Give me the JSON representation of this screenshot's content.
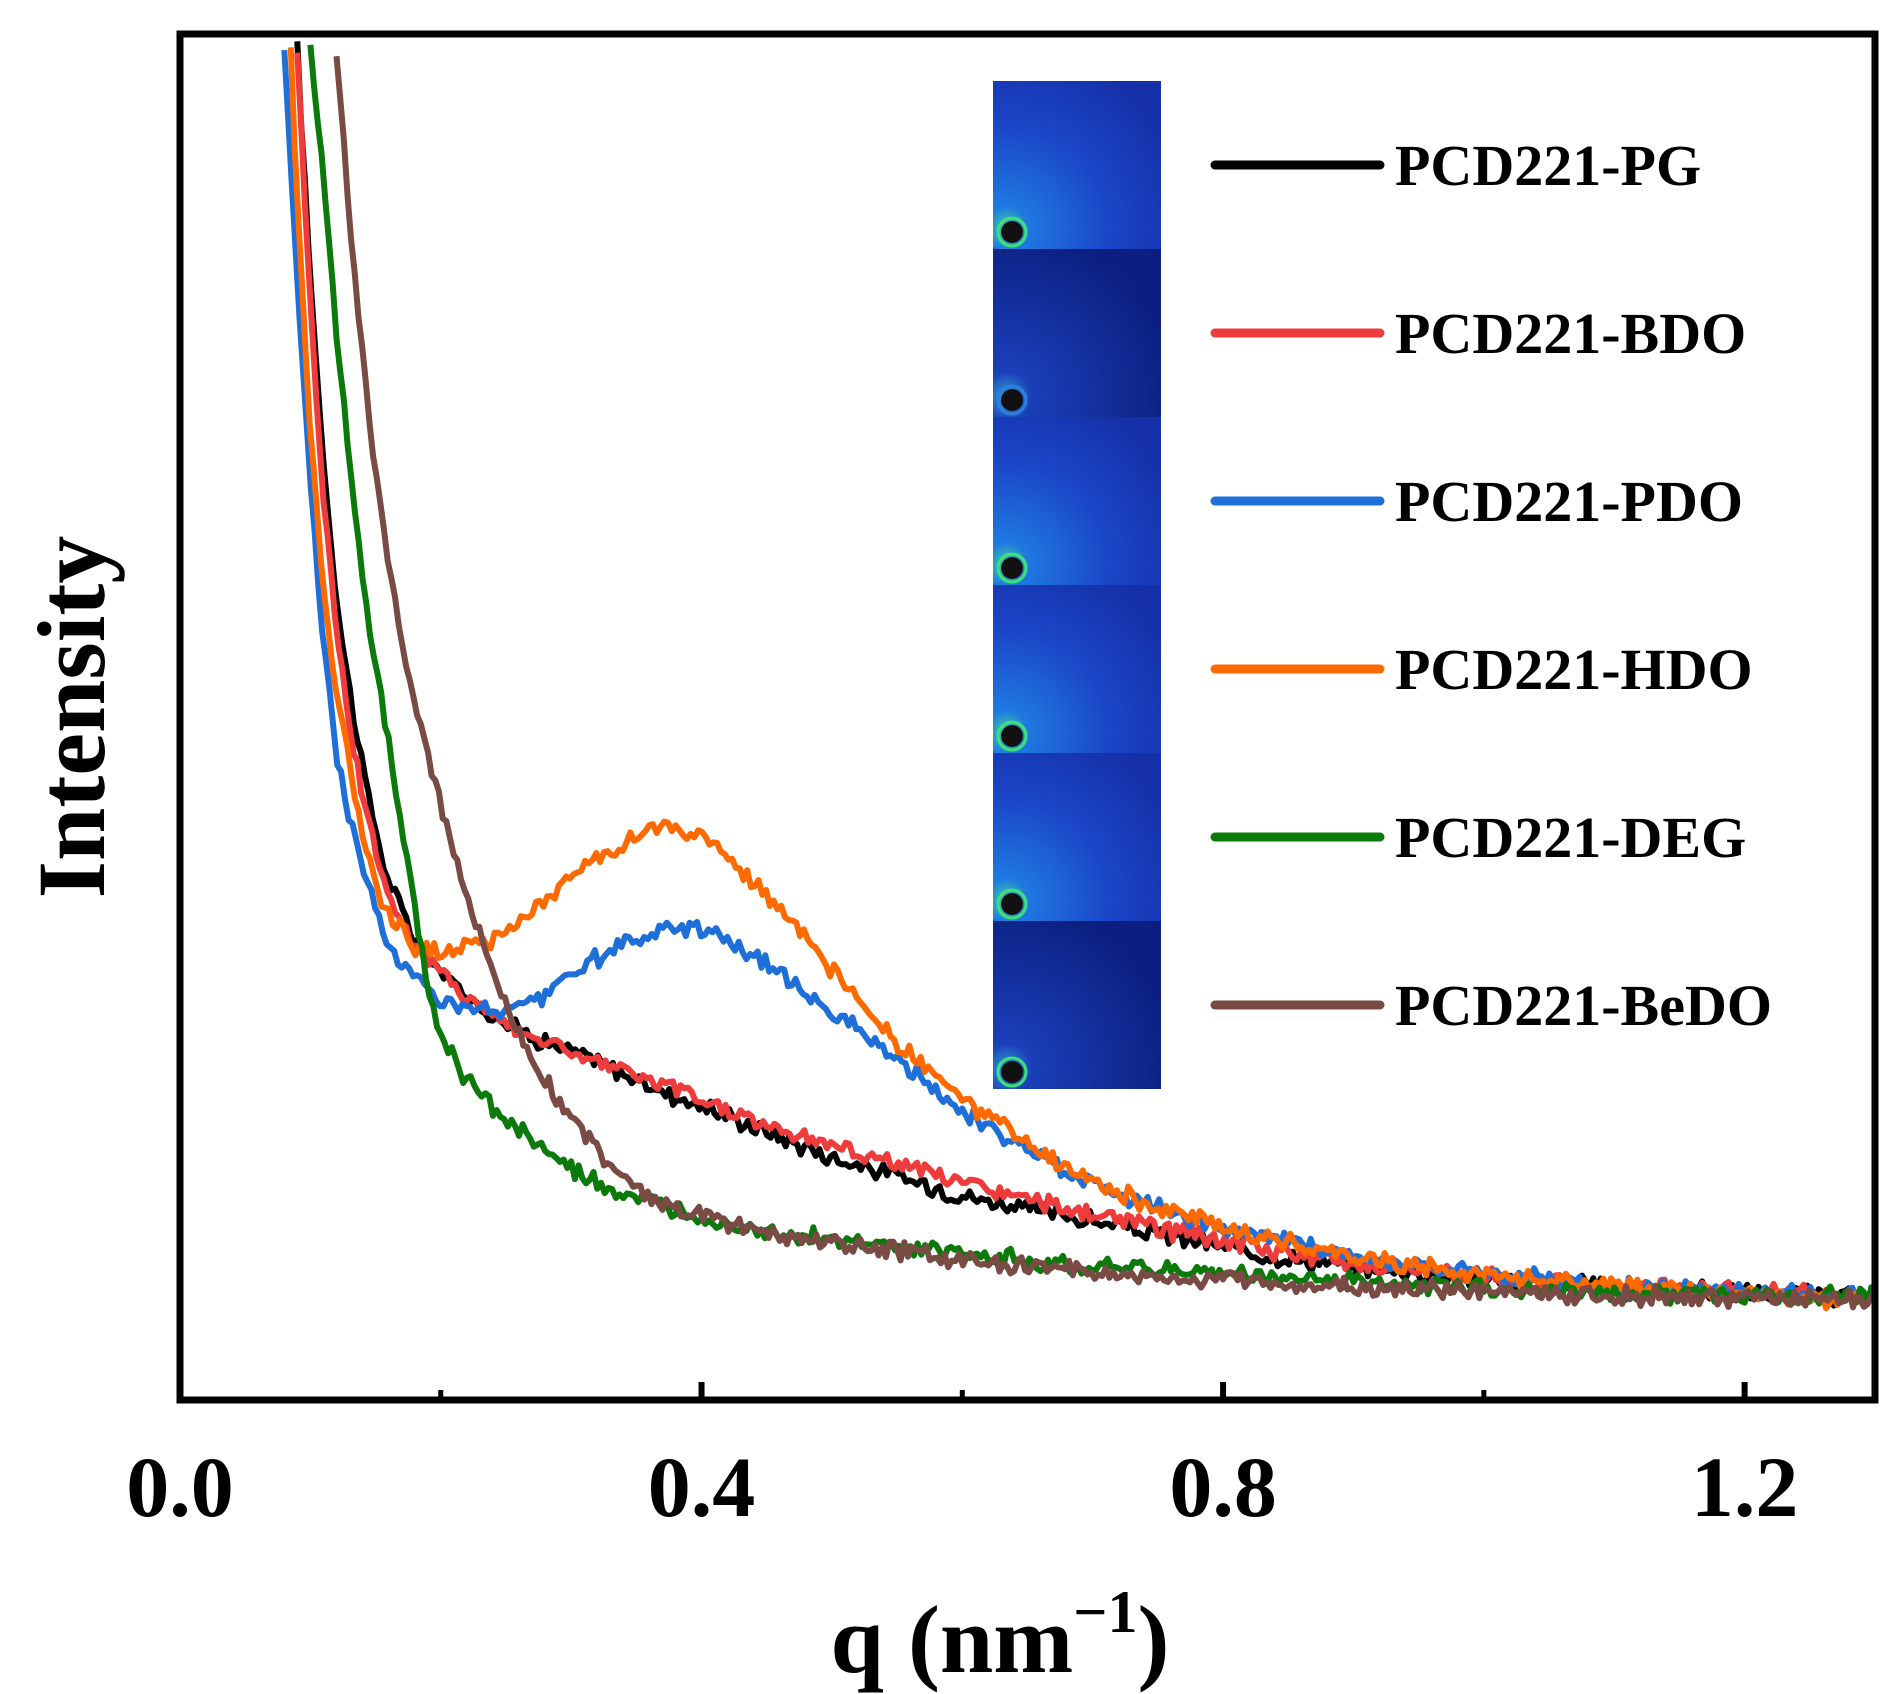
{
  "chart_data": {
    "type": "line",
    "title": "",
    "xlabel": "q (nm",
    "xlabel_sup": "−1",
    "xlabel_close": ")",
    "ylabel": "Intensity",
    "xlim": [
      0.0,
      1.3
    ],
    "ylim": [
      0,
      100
    ],
    "x_ticks": [
      0.0,
      0.4,
      0.8,
      1.2
    ],
    "x_tick_labels": [
      "0.0",
      "0.4",
      "0.8",
      "1.2"
    ],
    "x_minor_ticks": [
      0.2,
      0.6,
      1.0
    ],
    "legend_position": "top-right",
    "inset": "SAXS 2D scattering patterns, six stacked panels",
    "series": [
      {
        "name": "PCD221-PG",
        "color": "#000000",
        "x": [
          0.09,
          0.1,
          0.11,
          0.12,
          0.13,
          0.14,
          0.15,
          0.16,
          0.18,
          0.2,
          0.22,
          0.25,
          0.28,
          0.32,
          0.36,
          0.4,
          0.45,
          0.5,
          0.55,
          0.6,
          0.65,
          0.7,
          0.75,
          0.8,
          0.85,
          0.9,
          1.0,
          1.1,
          1.2,
          1.3
        ],
        "y": [
          100,
          82,
          68,
          57,
          50,
          44,
          39,
          35,
          30.5,
          28,
          26,
          24,
          22.5,
          21,
          19,
          17.5,
          15.5,
          13.5,
          12,
          10.5,
          9.5,
          8.5,
          7.5,
          6.5,
          5.6,
          5,
          4,
          3.4,
          2.9,
          2.5
        ]
      },
      {
        "name": "PCD221-BDO",
        "color": "#ee3b3b",
        "x": [
          0.09,
          0.1,
          0.11,
          0.12,
          0.13,
          0.14,
          0.15,
          0.16,
          0.18,
          0.2,
          0.22,
          0.25,
          0.28,
          0.32,
          0.36,
          0.4,
          0.45,
          0.5,
          0.55,
          0.6,
          0.65,
          0.7,
          0.75,
          0.8,
          0.85,
          0.9,
          1.0,
          1.1,
          1.2,
          1.3
        ],
        "y": [
          100,
          80,
          65,
          55,
          47,
          42,
          37.5,
          34,
          30,
          28,
          26,
          24,
          22.5,
          21,
          19.5,
          18,
          16,
          14.5,
          13,
          11.5,
          10.2,
          9,
          8,
          7,
          6,
          5.2,
          4.2,
          3.5,
          3,
          2.6
        ]
      },
      {
        "name": "PCD221-PDO",
        "color": "#1f6fd9",
        "x": [
          0.08,
          0.09,
          0.1,
          0.11,
          0.12,
          0.13,
          0.14,
          0.15,
          0.16,
          0.18,
          0.2,
          0.22,
          0.25,
          0.28,
          0.3,
          0.33,
          0.36,
          0.38,
          0.4,
          0.42,
          0.45,
          0.48,
          0.5,
          0.55,
          0.6,
          0.65,
          0.7,
          0.75,
          0.8,
          0.9,
          1.0,
          1.1,
          1.2,
          1.3
        ],
        "y": [
          100,
          82,
          66,
          54,
          45,
          40,
          36,
          33,
          30,
          27.5,
          26,
          25,
          25,
          26,
          28,
          29.5,
          30.8,
          31.5,
          31.5,
          30.5,
          28.5,
          26.5,
          25,
          21,
          17,
          14,
          11.5,
          9.5,
          8,
          5.8,
          4.4,
          3.5,
          3,
          2.5
        ]
      },
      {
        "name": "PCD221-HDO",
        "color": "#ff6a00",
        "x": [
          0.085,
          0.09,
          0.1,
          0.11,
          0.12,
          0.13,
          0.14,
          0.15,
          0.16,
          0.18,
          0.2,
          0.22,
          0.25,
          0.28,
          0.3,
          0.33,
          0.36,
          0.38,
          0.4,
          0.42,
          0.45,
          0.48,
          0.5,
          0.55,
          0.6,
          0.65,
          0.7,
          0.75,
          0.8,
          0.9,
          1.0,
          1.1,
          1.2,
          1.3
        ],
        "y": [
          100,
          88,
          70,
          58,
          50,
          44,
          39,
          35,
          32.5,
          30,
          29.5,
          30,
          31,
          33.5,
          35.5,
          37.5,
          39,
          39.2,
          38.5,
          37,
          34,
          30.5,
          28,
          22.5,
          18,
          14.5,
          11.5,
          9.5,
          8,
          5.8,
          4.3,
          3.4,
          2.8,
          2.2
        ]
      },
      {
        "name": "PCD221-DEG",
        "color": "#0b7a0b",
        "x": [
          0.1,
          0.11,
          0.12,
          0.13,
          0.14,
          0.15,
          0.16,
          0.17,
          0.18,
          0.19,
          0.2,
          0.22,
          0.25,
          0.28,
          0.3,
          0.33,
          0.36,
          0.4,
          0.45,
          0.5,
          0.55,
          0.6,
          0.7,
          0.8,
          0.9,
          1.0,
          1.1,
          1.2,
          1.3
        ],
        "y": [
          100,
          90,
          78,
          68,
          59,
          52,
          46,
          39,
          33,
          27,
          23,
          19.5,
          16.5,
          14,
          12.5,
          11,
          9.8,
          8.8,
          7.8,
          7,
          6.4,
          5.9,
          5,
          4.4,
          3.8,
          3.3,
          2.9,
          2.7,
          2.6
        ]
      },
      {
        "name": "PCD221-BeDO",
        "color": "#7a4a44",
        "x": [
          0.12,
          0.13,
          0.14,
          0.15,
          0.16,
          0.17,
          0.18,
          0.2,
          0.22,
          0.24,
          0.26,
          0.28,
          0.3,
          0.33,
          0.36,
          0.4,
          0.45,
          0.5,
          0.55,
          0.6,
          0.7,
          0.8,
          0.9,
          1.0,
          1.1,
          1.2,
          1.3
        ],
        "y": [
          100,
          87,
          76,
          67,
          60,
          54,
          49,
          41,
          34,
          28,
          23,
          19.5,
          16.5,
          13,
          10.5,
          8.8,
          7.6,
          6.8,
          6.2,
          5.5,
          4.5,
          3.9,
          3.4,
          3,
          2.7,
          2.5,
          2.4
        ]
      }
    ]
  }
}
